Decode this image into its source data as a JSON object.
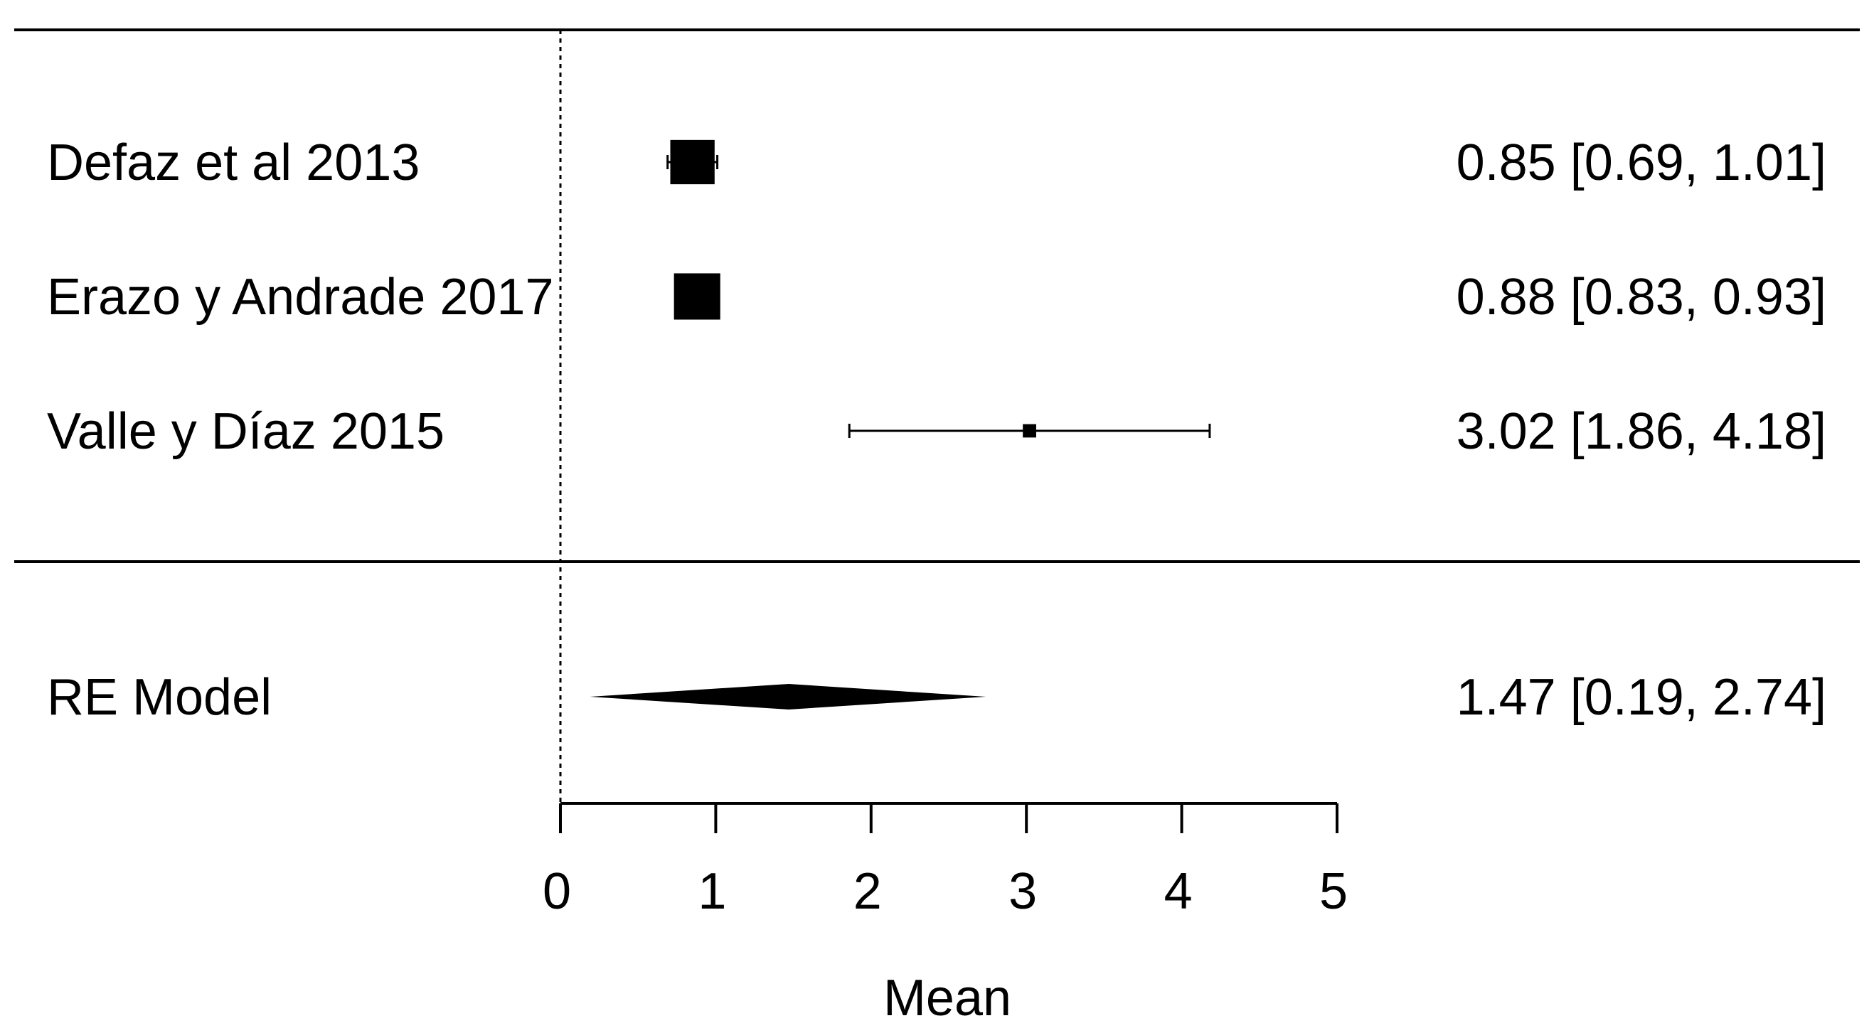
{
  "chart_data": {
    "type": "forest",
    "xlabel": "Mean",
    "xlim": [
      0,
      5
    ],
    "xticks": [
      0,
      1,
      2,
      3,
      4,
      5
    ],
    "reference_line": 0,
    "studies": [
      {
        "label": "Defaz et al 2013",
        "estimate": 0.85,
        "ci_low": 0.69,
        "ci_high": 1.01,
        "ci_text": "0.85 [0.69, 1.01]",
        "weight": 0.55
      },
      {
        "label": "Erazo y Andrade 2017",
        "estimate": 0.88,
        "ci_low": 0.83,
        "ci_high": 0.93,
        "ci_text": "0.88 [0.83, 0.93]",
        "weight": 0.6
      },
      {
        "label": "Valle y Díaz 2015",
        "estimate": 3.02,
        "ci_low": 1.86,
        "ci_high": 4.18,
        "ci_text": "3.02 [1.86, 4.18]",
        "weight": 0.05
      }
    ],
    "summary": {
      "label": "RE Model",
      "estimate": 1.47,
      "ci_low": 0.19,
      "ci_high": 2.74,
      "ci_text": "1.47 [0.19, 2.74]"
    }
  }
}
